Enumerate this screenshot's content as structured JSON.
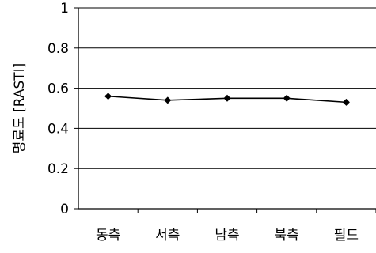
{
  "chart_data": {
    "type": "line",
    "categories": [
      "동측",
      "서측",
      "남측",
      "북측",
      "필드"
    ],
    "series": [
      {
        "values": [
          0.56,
          0.54,
          0.55,
          0.55,
          0.53
        ],
        "color": "#000000",
        "marker": "diamond"
      }
    ],
    "ylabel": "명료도 [RASTI]",
    "xlabel": "",
    "ylim": [
      0,
      1
    ],
    "yticks": [
      "0",
      "0.2",
      "0.4",
      "0.6",
      "0.8",
      "1"
    ],
    "grid": "horizontal",
    "legend": "none"
  }
}
